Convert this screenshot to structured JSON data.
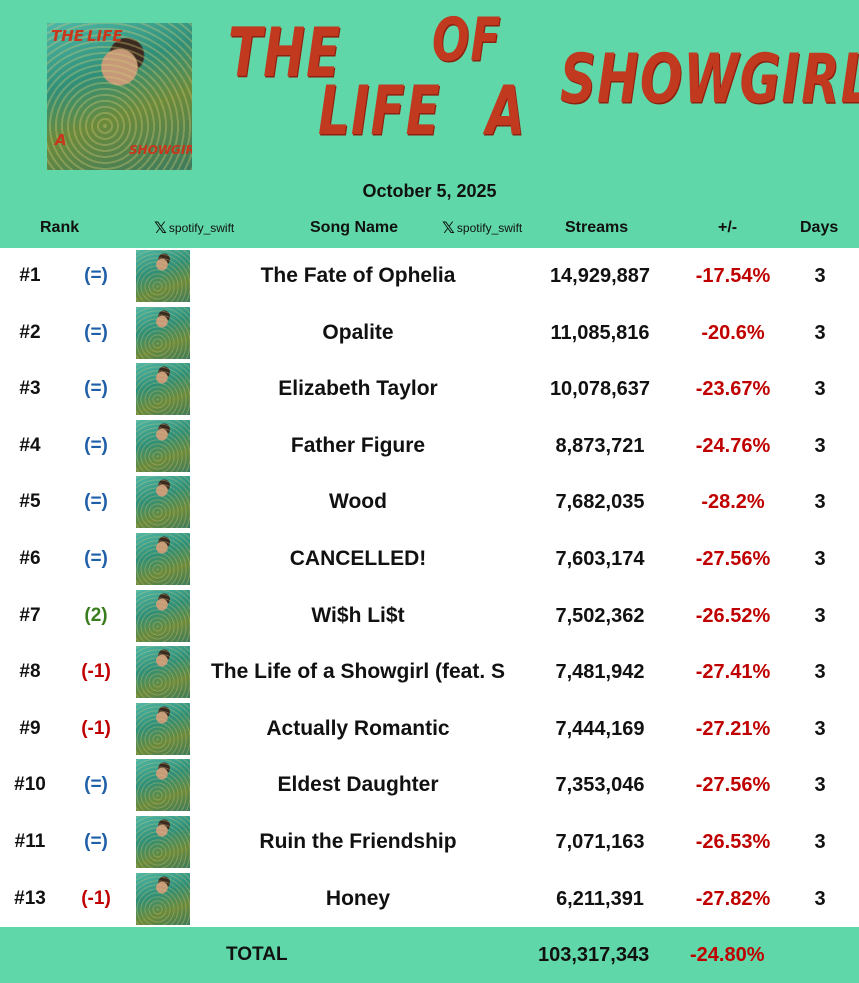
{
  "header": {
    "title_words": [
      "THE",
      "OF",
      "LIFE",
      "A",
      "SHOWGIRL"
    ],
    "cover_text": [
      "THE",
      "LIFE",
      "A",
      "SHOWGIRL"
    ],
    "date": "October 5, 2025",
    "accent_color": "#5fd7a8",
    "title_color": "#c13a20"
  },
  "columns": {
    "rank": "Rank",
    "handle": "spotify_swift",
    "song": "Song Name",
    "streams": "Streams",
    "change": "+/-",
    "days": "Days"
  },
  "rows": [
    {
      "rank": "#1",
      "chg": "(=)",
      "chg_type": "same",
      "song": "The Fate of Ophelia",
      "streams": "14,929,887",
      "pct": "-17.54%",
      "days": "3"
    },
    {
      "rank": "#2",
      "chg": "(=)",
      "chg_type": "same",
      "song": "Opalite",
      "streams": "11,085,816",
      "pct": "-20.6%",
      "days": "3"
    },
    {
      "rank": "#3",
      "chg": "(=)",
      "chg_type": "same",
      "song": "Elizabeth Taylor",
      "streams": "10,078,637",
      "pct": "-23.67%",
      "days": "3"
    },
    {
      "rank": "#4",
      "chg": "(=)",
      "chg_type": "same",
      "song": "Father Figure",
      "streams": "8,873,721",
      "pct": "-24.76%",
      "days": "3"
    },
    {
      "rank": "#5",
      "chg": "(=)",
      "chg_type": "same",
      "song": "Wood",
      "streams": "7,682,035",
      "pct": "-28.2%",
      "days": "3"
    },
    {
      "rank": "#6",
      "chg": "(=)",
      "chg_type": "same",
      "song": "CANCELLED!",
      "streams": "7,603,174",
      "pct": "-27.56%",
      "days": "3"
    },
    {
      "rank": "#7",
      "chg": "(2)",
      "chg_type": "up",
      "song": "Wi$h Li$t",
      "streams": "7,502,362",
      "pct": "-26.52%",
      "days": "3"
    },
    {
      "rank": "#8",
      "chg": "(-1)",
      "chg_type": "down",
      "song": "The Life of a Showgirl (feat. S",
      "streams": "7,481,942",
      "pct": "-27.41%",
      "days": "3"
    },
    {
      "rank": "#9",
      "chg": "(-1)",
      "chg_type": "down",
      "song": "Actually Romantic",
      "streams": "7,444,169",
      "pct": "-27.21%",
      "days": "3"
    },
    {
      "rank": "#10",
      "chg": "(=)",
      "chg_type": "same",
      "song": "Eldest Daughter",
      "streams": "7,353,046",
      "pct": "-27.56%",
      "days": "3"
    },
    {
      "rank": "#11",
      "chg": "(=)",
      "chg_type": "same",
      "song": "Ruin the Friendship",
      "streams": "7,071,163",
      "pct": "-26.53%",
      "days": "3"
    },
    {
      "rank": "#13",
      "chg": "(-1)",
      "chg_type": "down",
      "song": "Honey",
      "streams": "6,211,391",
      "pct": "-27.82%",
      "days": "3"
    }
  ],
  "total": {
    "label": "TOTAL",
    "streams": "103,317,343",
    "pct": "-24.80%"
  },
  "colors": {
    "same": "#1f5fa8",
    "up": "#3a7d1e",
    "down": "#c00000",
    "negative": "#c00000"
  }
}
